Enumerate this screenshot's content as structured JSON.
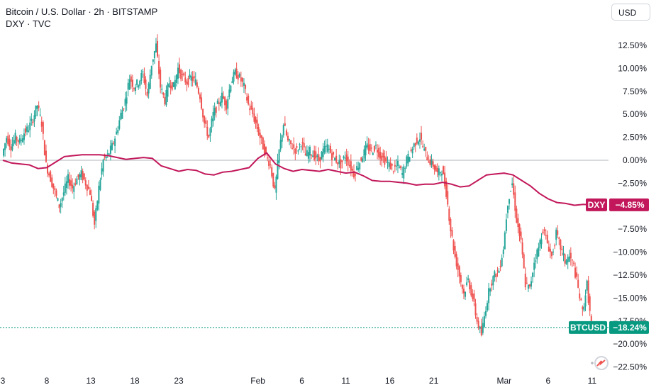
{
  "header": {
    "main_symbol": "Bitcoin / U.S. Dollar · 2h · BITSTAMP",
    "compare_symbol": "DXY · TVC"
  },
  "currency_button": "USD",
  "colors": {
    "up": "#26a69a",
    "down": "#ef5350",
    "dxy_line": "#c2185b",
    "btc_badge": "#089981",
    "zero_line": "#b2b5be"
  },
  "chart_data": {
    "type": "candlestick",
    "y_axis": {
      "unit": "percent",
      "range": [
        -23.5,
        14.5
      ],
      "ticks": [
        "12.50%",
        "10.00%",
        "7.50%",
        "5.00%",
        "2.50%",
        "0.00%",
        "−2.50%",
        "−7.50%",
        "−10.00%",
        "−12.50%",
        "−15.00%",
        "−17.50%",
        "−20.00%",
        "−22.50%"
      ],
      "tick_values": [
        12.5,
        10,
        7.5,
        5,
        2.5,
        0,
        -2.5,
        -7.5,
        -10,
        -12.5,
        -15,
        -17.5,
        -20,
        -22.5
      ]
    },
    "x_axis": {
      "ticks": [
        "3",
        "8",
        "13",
        "18",
        "23",
        "Feb",
        "6",
        "11",
        "16",
        "21",
        "Mar",
        "6",
        "11"
      ],
      "tick_days": [
        3,
        8,
        13,
        18,
        23,
        32,
        37,
        42,
        47,
        52,
        60,
        65,
        70
      ],
      "range_days": [
        3,
        71
      ]
    },
    "series": [
      {
        "name": "BTCUSD",
        "style": "candles",
        "last_value_label": "−18.24%",
        "points": [
          [
            3,
            0.5
          ],
          [
            3.5,
            2.5
          ],
          [
            4,
            1.5
          ],
          [
            4.5,
            2.5
          ],
          [
            5,
            2.0
          ],
          [
            5.5,
            3.0
          ],
          [
            6,
            3.5
          ],
          [
            6.5,
            4.5
          ],
          [
            7,
            6.0
          ],
          [
            7.5,
            4.0
          ],
          [
            8,
            -0.5
          ],
          [
            8.5,
            -2.0
          ],
          [
            9,
            -3.5
          ],
          [
            9.5,
            -5.0
          ],
          [
            10,
            -3.5
          ],
          [
            10.5,
            -2.0
          ],
          [
            11,
            -3.0
          ],
          [
            11.5,
            -2.0
          ],
          [
            12,
            -1.5
          ],
          [
            12.5,
            -2.5
          ],
          [
            13,
            -3.5
          ],
          [
            13.5,
            -7.0
          ],
          [
            14,
            -3.0
          ],
          [
            14.5,
            0.0
          ],
          [
            15,
            0.5
          ],
          [
            15.5,
            1.5
          ],
          [
            16,
            3.0
          ],
          [
            16.5,
            5.0
          ],
          [
            17,
            6.5
          ],
          [
            17.5,
            9.0
          ],
          [
            18,
            8.0
          ],
          [
            18.5,
            8.5
          ],
          [
            19,
            9.5
          ],
          [
            19.5,
            7.0
          ],
          [
            20,
            10.5
          ],
          [
            20.5,
            12.5
          ],
          [
            21,
            8.0
          ],
          [
            21.5,
            6.5
          ],
          [
            22,
            8.5
          ],
          [
            22.5,
            8.0
          ],
          [
            23,
            10.0
          ],
          [
            23.5,
            9.0
          ],
          [
            24,
            8.5
          ],
          [
            24.5,
            9.0
          ],
          [
            25,
            8.5
          ],
          [
            25.5,
            7.0
          ],
          [
            26,
            4.0
          ],
          [
            26.5,
            2.5
          ],
          [
            27,
            5.0
          ],
          [
            27.5,
            6.0
          ],
          [
            28,
            7.0
          ],
          [
            28.5,
            6.0
          ],
          [
            29,
            8.5
          ],
          [
            29.5,
            9.5
          ],
          [
            30,
            9.0
          ],
          [
            30.5,
            8.0
          ],
          [
            31,
            6.0
          ],
          [
            31.5,
            5.0
          ],
          [
            32,
            3.5
          ],
          [
            32.5,
            2.0
          ],
          [
            33,
            0.5
          ],
          [
            33.5,
            -0.5
          ],
          [
            34,
            -3.5
          ],
          [
            34.5,
            1.0
          ],
          [
            35,
            4.0
          ],
          [
            35.5,
            2.0
          ],
          [
            36,
            1.5
          ],
          [
            36.5,
            1.0
          ],
          [
            37,
            2.0
          ],
          [
            37.5,
            0.5
          ],
          [
            38,
            1.0
          ],
          [
            38.5,
            0.5
          ],
          [
            39,
            0.0
          ],
          [
            39.5,
            1.0
          ],
          [
            40,
            1.5
          ],
          [
            40.5,
            0.5
          ],
          [
            41,
            0.0
          ],
          [
            41.5,
            -0.5
          ],
          [
            42,
            0.5
          ],
          [
            42.5,
            -0.5
          ],
          [
            43,
            -1.5
          ],
          [
            43.5,
            -0.5
          ],
          [
            44,
            0.5
          ],
          [
            44.5,
            1.5
          ],
          [
            45,
            1.0
          ],
          [
            45.5,
            1.5
          ],
          [
            46,
            0.5
          ],
          [
            46.5,
            0.0
          ],
          [
            47,
            -0.5
          ],
          [
            47.5,
            -1.0
          ],
          [
            48,
            -0.5
          ],
          [
            48.5,
            -1.5
          ],
          [
            49,
            0.0
          ],
          [
            49.5,
            1.0
          ],
          [
            50,
            2.0
          ],
          [
            50.5,
            2.5
          ],
          [
            51,
            1.0
          ],
          [
            51.5,
            0.0
          ],
          [
            52,
            -0.5
          ],
          [
            52.5,
            -1.5
          ],
          [
            53,
            -1.0
          ],
          [
            53.5,
            -3.5
          ],
          [
            54,
            -7.5
          ],
          [
            54.5,
            -10.5
          ],
          [
            55,
            -12.5
          ],
          [
            55.5,
            -14.5
          ],
          [
            56,
            -13.0
          ],
          [
            56.5,
            -15.0
          ],
          [
            57,
            -17.5
          ],
          [
            57.5,
            -19.0
          ],
          [
            58,
            -16.0
          ],
          [
            58.5,
            -13.5
          ],
          [
            59,
            -12.5
          ],
          [
            59.5,
            -12.0
          ],
          [
            60,
            -9.5
          ],
          [
            60.5,
            -4.5
          ],
          [
            61,
            -2.5
          ],
          [
            61.5,
            -6.5
          ],
          [
            62,
            -9.0
          ],
          [
            62.5,
            -13.5
          ],
          [
            63,
            -14.0
          ],
          [
            63.5,
            -11.0
          ],
          [
            64,
            -9.5
          ],
          [
            64.5,
            -7.5
          ],
          [
            65,
            -9.0
          ],
          [
            65.5,
            -10.5
          ],
          [
            66,
            -8.0
          ],
          [
            66.5,
            -9.5
          ],
          [
            67,
            -11.0
          ],
          [
            67.5,
            -10.5
          ],
          [
            68,
            -11.5
          ],
          [
            68.5,
            -14.0
          ],
          [
            69,
            -16.5
          ],
          [
            69.5,
            -13.5
          ],
          [
            70,
            -18.2
          ]
        ]
      },
      {
        "name": "DXY",
        "style": "line",
        "last_value_label": "−4.85%",
        "points": [
          [
            3,
            0.0
          ],
          [
            4,
            -0.3
          ],
          [
            5,
            -0.4
          ],
          [
            6,
            -0.5
          ],
          [
            7,
            -0.9
          ],
          [
            8,
            -0.8
          ],
          [
            9,
            -0.2
          ],
          [
            10,
            0.4
          ],
          [
            11,
            0.5
          ],
          [
            12,
            0.6
          ],
          [
            13,
            0.6
          ],
          [
            14,
            0.6
          ],
          [
            15,
            0.5
          ],
          [
            16,
            0.3
          ],
          [
            17,
            0.1
          ],
          [
            18,
            0.2
          ],
          [
            19,
            0.3
          ],
          [
            20,
            0.2
          ],
          [
            21,
            -0.6
          ],
          [
            22,
            -0.9
          ],
          [
            23,
            -1.2
          ],
          [
            24,
            -1.0
          ],
          [
            25,
            -1.1
          ],
          [
            26,
            -1.5
          ],
          [
            27,
            -1.6
          ],
          [
            28,
            -1.3
          ],
          [
            29,
            -1.2
          ],
          [
            30,
            -1.0
          ],
          [
            31,
            -0.8
          ],
          [
            32,
            0.2
          ],
          [
            33,
            0.8
          ],
          [
            34,
            -0.4
          ],
          [
            35,
            -0.9
          ],
          [
            36,
            -1.2
          ],
          [
            37,
            -1.0
          ],
          [
            38,
            -1.1
          ],
          [
            39,
            -1.2
          ],
          [
            40,
            -1.0
          ],
          [
            41,
            -1.2
          ],
          [
            42,
            -1.4
          ],
          [
            43,
            -1.3
          ],
          [
            44,
            -1.7
          ],
          [
            45,
            -2.2
          ],
          [
            46,
            -2.3
          ],
          [
            47,
            -2.3
          ],
          [
            48,
            -2.4
          ],
          [
            49,
            -2.5
          ],
          [
            50,
            -2.7
          ],
          [
            51,
            -2.6
          ],
          [
            52,
            -2.6
          ],
          [
            53,
            -2.4
          ],
          [
            54,
            -2.6
          ],
          [
            55,
            -2.9
          ],
          [
            56,
            -2.8
          ],
          [
            57,
            -2.2
          ],
          [
            58,
            -1.6
          ],
          [
            59,
            -1.5
          ],
          [
            60,
            -1.4
          ],
          [
            61,
            -1.6
          ],
          [
            62,
            -2.2
          ],
          [
            63,
            -2.8
          ],
          [
            64,
            -3.6
          ],
          [
            65,
            -4.2
          ],
          [
            66,
            -4.6
          ],
          [
            67,
            -4.7
          ],
          [
            68,
            -4.9
          ],
          [
            69,
            -4.8
          ],
          [
            70,
            -4.85
          ]
        ]
      }
    ]
  }
}
